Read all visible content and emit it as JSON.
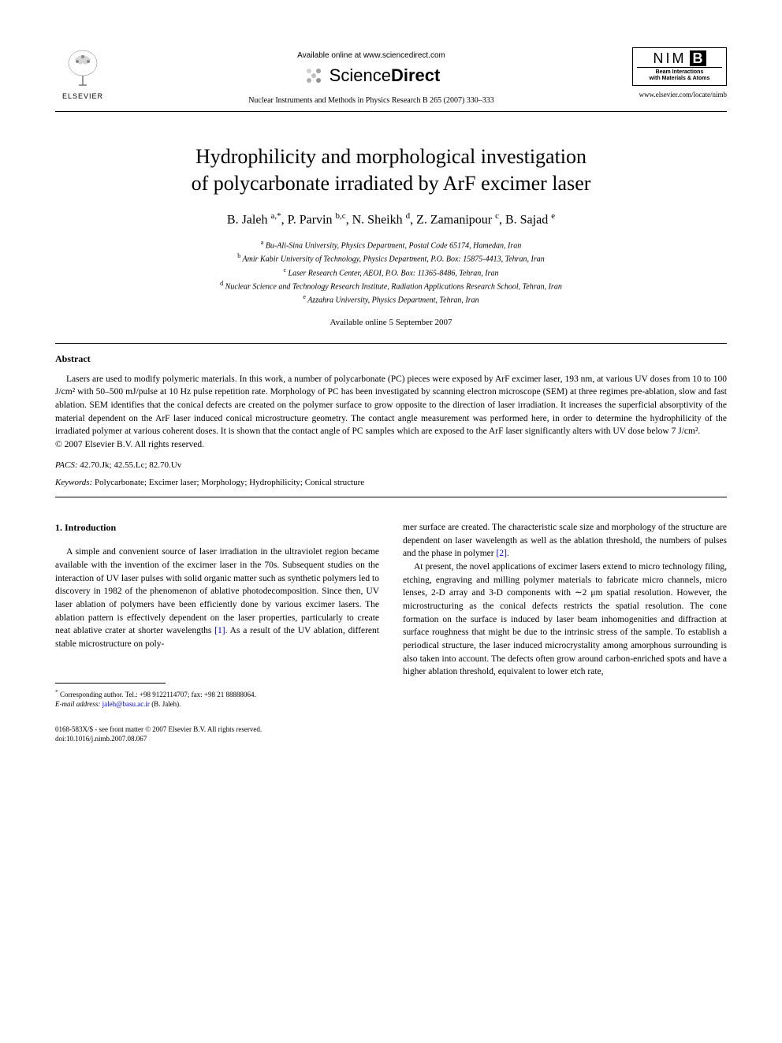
{
  "header": {
    "elsevier_label": "ELSEVIER",
    "available_online": "Available online at www.sciencedirect.com",
    "sciencedirect_prefix": "Science",
    "sciencedirect_suffix": "Direct",
    "journal_ref": "Nuclear Instruments and Methods in Physics Research B 265 (2007) 330–333",
    "nimb_letters": "NIM",
    "nimb_b": "B",
    "nimb_sub1": "Beam Interactions",
    "nimb_sub2": "with Materials & Atoms",
    "journal_url": "www.elsevier.com/locate/nimb"
  },
  "title_line1": "Hydrophilicity and morphological investigation",
  "title_line2": "of polycarbonate irradiated by ArF excimer laser",
  "authors_html": "B. Jaleh <sup>a,*</sup>, P. Parvin <sup>b,c</sup>, N. Sheikh <sup>d</sup>, Z. Zamanipour <sup>c</sup>, B. Sajad <sup>e</sup>",
  "affiliations": {
    "a": "Bu-Ali-Sina University, Physics Department, Postal Code 65174, Hamedan, Iran",
    "b": "Amir Kabir University of Technology, Physics Department, P.O. Box: 15875-4413, Tehran, Iran",
    "c": "Laser Research Center, AEOI, P.O. Box: 11365-8486, Tehran, Iran",
    "d": "Nuclear Science and Technology Research Institute, Radiation Applications Research School, Tehran, Iran",
    "e": "Azzahra University, Physics Department, Tehran, Iran"
  },
  "date_online": "Available online 5 September 2007",
  "abstract": {
    "heading": "Abstract",
    "body": "Lasers are used to modify polymeric materials. In this work, a number of polycarbonate (PC) pieces were exposed by ArF excimer laser, 193 nm, at various UV doses from 10 to 100 J/cm² with 50–500 mJ/pulse at 10 Hz pulse repetition rate. Morphology of PC has been investigated by scanning electron microscope (SEM) at three regimes pre-ablation, slow and fast ablation. SEM identifies that the conical defects are created on the polymer surface to grow opposite to the direction of laser irradiation. It increases the superficial absorptivity of the material dependent on the ArF laser induced conical microstructure geometry. The contact angle measurement was performed here, in order to determine the hydrophilicity of the irradiated polymer at various coherent doses. It is shown that the contact angle of PC samples which are exposed to the ArF laser significantly alters with UV dose below 7 J/cm².",
    "copyright": "© 2007 Elsevier B.V. All rights reserved."
  },
  "pacs": {
    "label": "PACS:",
    "values": "42.70.Jk; 42.55.Lc; 82.70.Uv"
  },
  "keywords": {
    "label": "Keywords:",
    "values": "Polycarbonate; Excimer laser; Morphology; Hydrophilicity; Conical structure"
  },
  "intro": {
    "heading": "1. Introduction",
    "col1_p1": "A simple and convenient source of laser irradiation in the ultraviolet region became available with the invention of the excimer laser in the 70s. Subsequent studies on the interaction of UV laser pulses with solid organic matter such as synthetic polymers led to discovery in 1982 of the phenomenon of ablative photodecomposition. Since then, UV laser ablation of polymers have been efficiently done by various excimer lasers. The ablation pattern is effectively dependent on the laser properties, particularly to create neat ablative crater at shorter wavelengths ",
    "col1_ref1": "[1]",
    "col1_p1b": ". As a result of the UV ablation, different stable microstructure on poly-",
    "col2_p1": "mer surface are created. The characteristic scale size and morphology of the structure are dependent on laser wavelength as well as the ablation threshold, the numbers of pulses and the phase in polymer ",
    "col2_ref2": "[2]",
    "col2_p1b": ".",
    "col2_p2": "At present, the novel applications of excimer lasers extend to micro technology filing, etching, engraving and milling polymer materials to fabricate micro channels, micro lenses, 2-D array and 3-D components with ∼2 μm spatial resolution. However, the microstructuring as the conical defects restricts the spatial resolution. The cone formation on the surface is induced by laser beam inhomogenities and diffraction at surface roughness that might be due to the intrinsic stress of the sample. To establish a periodical structure, the laser induced microcrystality among amorphous surrounding is also taken into account. The defects often grow around carbon-enriched spots and have a higher ablation threshold, equivalent to lower etch rate,"
  },
  "footnote": {
    "corr": "Corresponding author. Tel.: +98 9122114707; fax: +98 21 88888064.",
    "email_label": "E-mail address:",
    "email": "jaleh@basu.ac.ir",
    "email_who": "(B. Jaleh)."
  },
  "footer": {
    "line1": "0168-583X/$ - see front matter © 2007 Elsevier B.V. All rights reserved.",
    "line2": "doi:10.1016/j.nimb.2007.08.067"
  },
  "colors": {
    "link": "#0000cc",
    "text": "#000000",
    "bg": "#ffffff",
    "elsevier_orange": "#e67817"
  }
}
